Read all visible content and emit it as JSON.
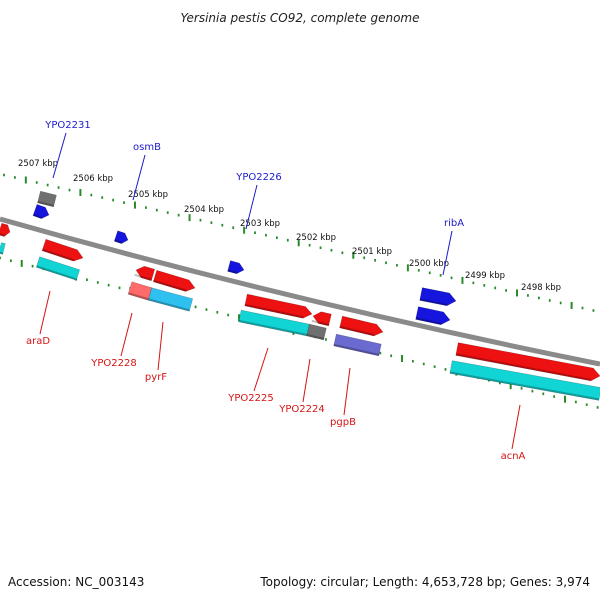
{
  "title": "Yersinia pestis CO92, complete genome",
  "footer": {
    "accession": "Accession: NC_003143",
    "summary": "Topology: circular; Length: 4,653,728 bp; Genes: 3,974"
  },
  "colors": {
    "backbone": "#8a8a8a",
    "tick": "#2a8a2a",
    "gene_red": "#ee1111",
    "gene_cyan": "#11d4d4",
    "gene_blue": "#1515dd",
    "gene_gray": "#707070",
    "gene_pink": "#ff6a6a",
    "gene_sky": "#2ec0ee",
    "gene_purple": "#6a6ad0",
    "label_blue": "#1a1acc",
    "label_red": "#d41414"
  },
  "scale_labels": [
    "2507 kbp",
    "2506 kbp",
    "2505 kbp",
    "2504 kbp",
    "2503 kbp",
    "2502 kbp",
    "2501 kbp",
    "2500 kbp",
    "2499 kbp",
    "2498 kbp"
  ],
  "labels_top": [
    "YPO2231",
    "osmB",
    "YPO2226",
    "ribA"
  ],
  "labels_bottom": [
    "araD",
    "YPO2228",
    "pyrF",
    "YPO2225",
    "YPO2224",
    "pgpB",
    "acnA"
  ]
}
